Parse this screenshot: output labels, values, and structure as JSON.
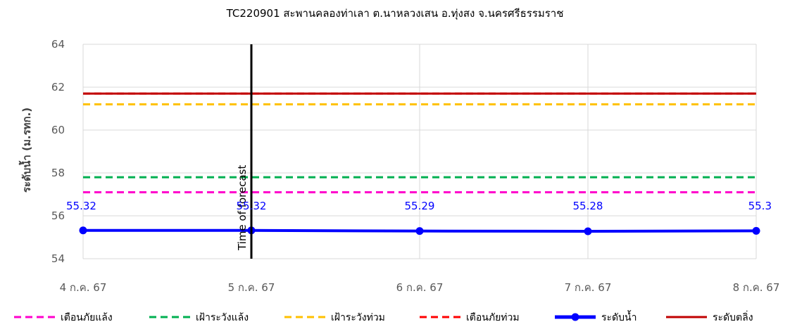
{
  "chart_data": {
    "type": "line",
    "title": "TC220901 สะพานคลองท่าเลา ต.นาหลวงเสน อ.ทุ่งสง จ.นครศรีธรรมราช",
    "ylabel": "ระดับน้ำ (ม.รทก.)",
    "xlabel": "",
    "x": [
      "4 ก.ค. 67",
      "5 ก.ค. 67",
      "6 ก.ค. 67",
      "7 ก.ค. 67",
      "8 ก.ค. 67"
    ],
    "ylim": [
      54,
      64
    ],
    "yticks": [
      54,
      56,
      58,
      60,
      62,
      64
    ],
    "grid": true,
    "legend_position": "bottom",
    "series": [
      {
        "name": "เตือนภัยแล้ง",
        "style": "dashed",
        "color": "#ff00cc",
        "values": [
          57.1,
          57.1,
          57.1,
          57.1,
          57.1
        ]
      },
      {
        "name": "เฝ้าระวังแล้ง",
        "style": "dashed",
        "color": "#00b050",
        "values": [
          57.8,
          57.8,
          57.8,
          57.8,
          57.8
        ]
      },
      {
        "name": "เฝ้าระวังท่วม",
        "style": "dashed",
        "color": "#ffc000",
        "values": [
          61.2,
          61.2,
          61.2,
          61.2,
          61.2
        ]
      },
      {
        "name": "เตือนภัยท่วม",
        "style": "dashed",
        "color": "#ff0000",
        "values": [
          61.7,
          61.7,
          61.7,
          61.7,
          61.7
        ]
      },
      {
        "name": "ระดับน้ำ",
        "style": "solid-marker",
        "color": "#0000ff",
        "values": [
          55.32,
          55.32,
          55.29,
          55.28,
          55.3
        ],
        "data_labels": [
          "55.32",
          "55.32",
          "55.29",
          "55.28",
          "55.3"
        ]
      },
      {
        "name": "ระดับตลิ่ง",
        "style": "solid",
        "color": "#c00000",
        "values": [
          61.7,
          61.7,
          61.7,
          61.7,
          61.7
        ]
      }
    ],
    "annotations": [
      {
        "type": "vline",
        "x": "5 ก.ค. 67",
        "label": "Time of forecast",
        "color": "#000000"
      }
    ]
  }
}
